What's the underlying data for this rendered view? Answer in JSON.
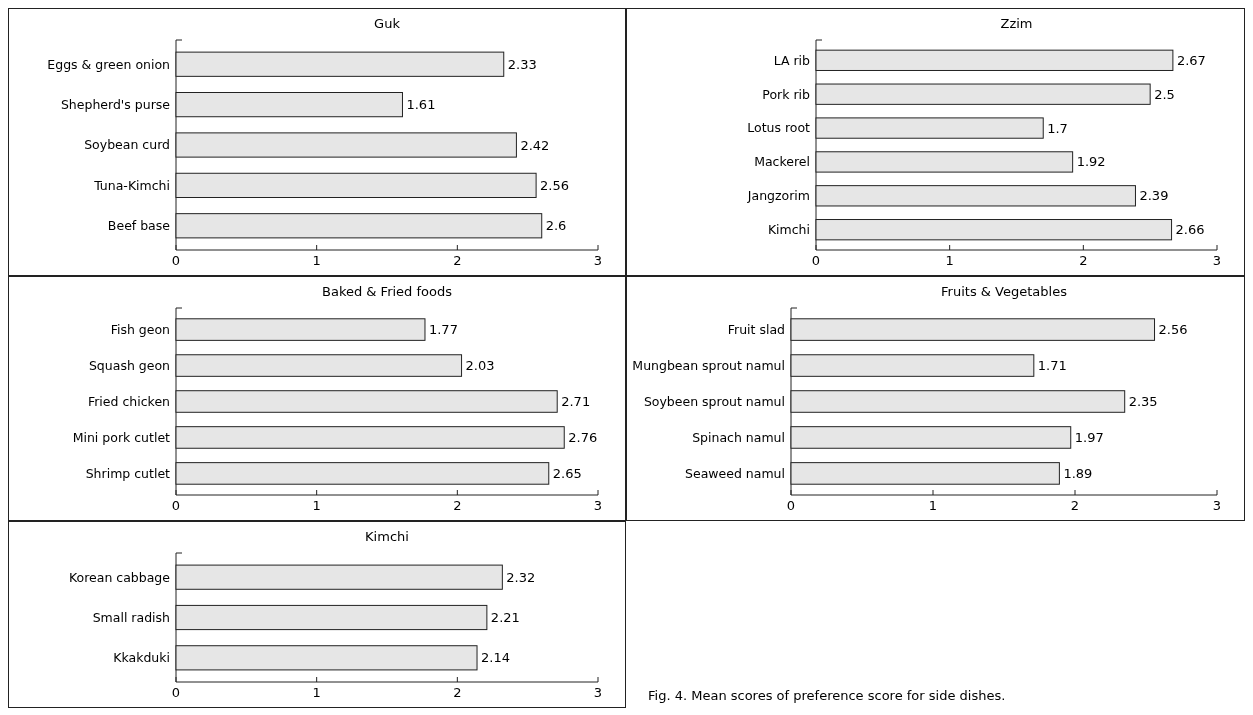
{
  "chart_data": [
    {
      "type": "bar",
      "orientation": "horizontal",
      "title": "Guk",
      "categories": [
        "Eggs & green onion",
        "Shepherd's purse",
        "Soybean curd",
        "Tuna-Kimchi",
        "Beef base"
      ],
      "values": [
        2.33,
        1.61,
        2.42,
        2.56,
        2.6
      ],
      "color": "#e6e6e6",
      "xlim": [
        0,
        3
      ],
      "xticks": [
        0,
        1,
        2,
        3
      ],
      "data_labels": true
    },
    {
      "type": "bar",
      "orientation": "horizontal",
      "title": "Zzim",
      "categories": [
        "LA rib",
        "Pork rib",
        "Lotus root",
        "Mackerel",
        "Jangzorim",
        "Kimchi"
      ],
      "values": [
        2.67,
        2.5,
        1.7,
        1.92,
        2.39,
        2.66
      ],
      "color": "#e6e6e6",
      "xlim": [
        0,
        3
      ],
      "xticks": [
        0,
        1,
        2,
        3
      ],
      "data_labels": true
    },
    {
      "type": "bar",
      "orientation": "horizontal",
      "title": "Baked & Fried foods",
      "categories": [
        "Fish geon",
        "Squash geon",
        "Fried chicken",
        "Mini pork cutlet",
        "Shrimp cutlet"
      ],
      "values": [
        1.77,
        2.03,
        2.71,
        2.76,
        2.65
      ],
      "color": "#e6e6e6",
      "xlim": [
        0,
        3
      ],
      "xticks": [
        0,
        1,
        2,
        3
      ],
      "data_labels": true
    },
    {
      "type": "bar",
      "orientation": "horizontal",
      "title": "Fruits & Vegetables",
      "categories": [
        "Fruit slad",
        "Mungbean sprout namul",
        "Soybeen sprout namul",
        "Spinach namul",
        "Seaweed namul"
      ],
      "values": [
        2.56,
        1.71,
        2.35,
        1.97,
        1.89
      ],
      "color": "#e6e6e6",
      "xlim": [
        0,
        3
      ],
      "xticks": [
        0,
        1,
        2,
        3
      ],
      "data_labels": true
    },
    {
      "type": "bar",
      "orientation": "horizontal",
      "title": "Kimchi",
      "categories": [
        "Korean cabbage",
        "Small radish",
        "Kkakduki"
      ],
      "values": [
        2.32,
        2.21,
        2.14
      ],
      "color": "#e6e6e6",
      "xlim": [
        0,
        3
      ],
      "xticks": [
        0,
        1,
        2,
        3
      ],
      "data_labels": true,
      "annotations": [
        "Fig. 4. Mean scores of preference score for side dishes."
      ]
    }
  ]
}
